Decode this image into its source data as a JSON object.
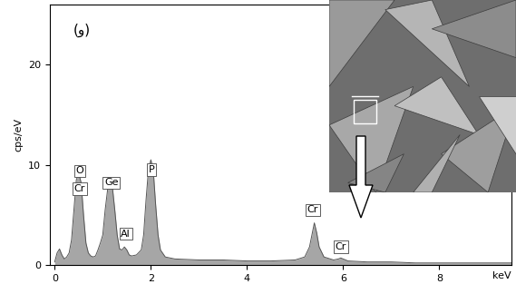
{
  "chart_data": {
    "type": "area",
    "panel_label": "(و)",
    "y_label": "cps/eV",
    "x_label": "keV",
    "x": [
      0,
      0.05,
      0.1,
      0.15,
      0.2,
      0.25,
      0.3,
      0.35,
      0.4,
      0.45,
      0.5,
      0.55,
      0.6,
      0.65,
      0.7,
      0.75,
      0.8,
      0.85,
      0.9,
      0.95,
      1.0,
      1.05,
      1.1,
      1.15,
      1.2,
      1.25,
      1.3,
      1.35,
      1.4,
      1.45,
      1.5,
      1.55,
      1.6,
      1.7,
      1.8,
      1.85,
      1.9,
      1.95,
      2.0,
      2.05,
      2.1,
      2.15,
      2.2,
      2.3,
      2.5,
      3,
      3.5,
      4,
      4.5,
      5,
      5.2,
      5.3,
      5.35,
      5.4,
      5.45,
      5.5,
      5.6,
      5.8,
      5.9,
      5.95,
      6.0,
      6.1,
      6.5,
      7,
      7.5,
      8,
      8.5,
      9,
      9.5
    ],
    "values": [
      0.3,
      1.2,
      1.6,
      1.0,
      0.6,
      0.8,
      1.2,
      2.5,
      5.5,
      8.5,
      9.2,
      8.2,
      5.0,
      2.2,
      1.2,
      0.9,
      0.8,
      0.9,
      1.5,
      2.2,
      3.0,
      5.5,
      7.5,
      8.4,
      7.8,
      5.5,
      3.0,
      1.6,
      1.5,
      1.8,
      1.5,
      1.0,
      0.9,
      1.0,
      1.5,
      3.0,
      6.5,
      9.5,
      10.5,
      9.5,
      6.0,
      3.0,
      1.5,
      0.8,
      0.6,
      0.5,
      0.5,
      0.4,
      0.4,
      0.5,
      0.8,
      1.8,
      3.0,
      4.2,
      3.2,
      1.8,
      0.8,
      0.5,
      0.6,
      0.7,
      0.6,
      0.4,
      0.3,
      0.3,
      0.2,
      0.2,
      0.2,
      0.2,
      0.2
    ],
    "color": "#a6a6a6",
    "xlim": [
      -0.1,
      9.5
    ],
    "ylim": [
      0,
      26
    ],
    "xticks": [
      0,
      2,
      4,
      6,
      8
    ],
    "yticks": [
      0,
      10,
      20
    ],
    "peak_labels": [
      {
        "label": "O",
        "x": 0.52,
        "y": 9.4
      },
      {
        "label": "Cr",
        "x": 0.52,
        "y": 7.6
      },
      {
        "label": "Ge",
        "x": 1.18,
        "y": 8.2
      },
      {
        "label": "Al",
        "x": 1.48,
        "y": 3.1
      },
      {
        "label": "P",
        "x": 2.01,
        "y": 9.5
      },
      {
        "label": "Cr",
        "x": 5.37,
        "y": 5.5
      },
      {
        "label": "Cr",
        "x": 5.95,
        "y": 1.8
      }
    ]
  }
}
